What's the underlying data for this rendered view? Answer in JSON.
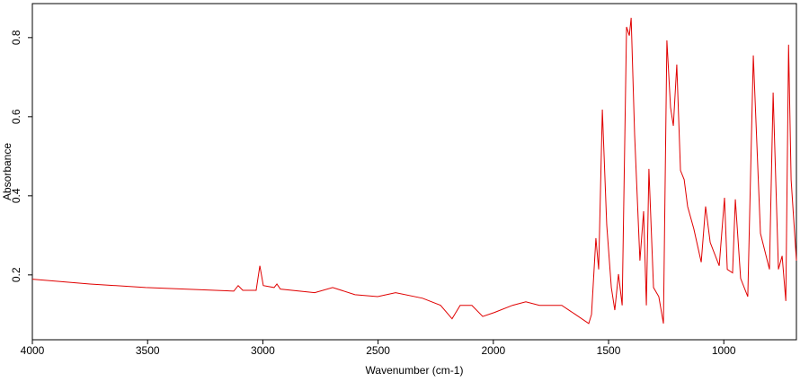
{
  "chart_data": {
    "type": "line",
    "x_label": "Wavenumber (cm-1)",
    "y_label": "Absorbance",
    "xlim": [
      4000,
      685
    ],
    "ylim": [
      0.036,
      0.886
    ],
    "xticks": [
      4000,
      3500,
      3000,
      2500,
      2000,
      1500,
      1000
    ],
    "yticks": [
      0.2,
      0.4,
      0.6,
      0.8
    ],
    "x": [
      4000,
      3750,
      3509,
      3126,
      3107,
      3087,
      3029,
      3013,
      2998,
      2951,
      2939,
      2924,
      2775,
      2697,
      2600,
      2502,
      2424,
      2307,
      2229,
      2179,
      2144,
      2093,
      2046,
      1995,
      1917,
      1859,
      1800,
      1703,
      1644,
      1586,
      1574,
      1555,
      1543,
      1527,
      1508,
      1488,
      1473,
      1457,
      1441,
      1422,
      1410,
      1402,
      1387,
      1364,
      1348,
      1336,
      1325,
      1305,
      1282,
      1262,
      1247,
      1231,
      1219,
      1204,
      1188,
      1172,
      1157,
      1130,
      1098,
      1079,
      1059,
      1020,
      997,
      985,
      962,
      950,
      927,
      896,
      872,
      841,
      802,
      786,
      763,
      747,
      731,
      719,
      708,
      685
    ],
    "series": [
      {
        "color": "#e00000",
        "values": [
          0.189,
          0.177,
          0.168,
          0.159,
          0.173,
          0.161,
          0.161,
          0.223,
          0.173,
          0.168,
          0.177,
          0.164,
          0.155,
          0.168,
          0.15,
          0.145,
          0.155,
          0.141,
          0.123,
          0.089,
          0.123,
          0.123,
          0.095,
          0.105,
          0.123,
          0.132,
          0.123,
          0.123,
          0.1,
          0.077,
          0.1,
          0.293,
          0.214,
          0.618,
          0.327,
          0.168,
          0.111,
          0.202,
          0.123,
          0.827,
          0.805,
          0.85,
          0.555,
          0.236,
          0.361,
          0.123,
          0.468,
          0.168,
          0.145,
          0.077,
          0.793,
          0.623,
          0.577,
          0.732,
          0.464,
          0.441,
          0.373,
          0.316,
          0.232,
          0.373,
          0.282,
          0.223,
          0.395,
          0.214,
          0.205,
          0.391,
          0.191,
          0.145,
          0.755,
          0.305,
          0.214,
          0.661,
          0.214,
          0.248,
          0.134,
          0.782,
          0.441,
          0.236
        ]
      }
    ]
  }
}
